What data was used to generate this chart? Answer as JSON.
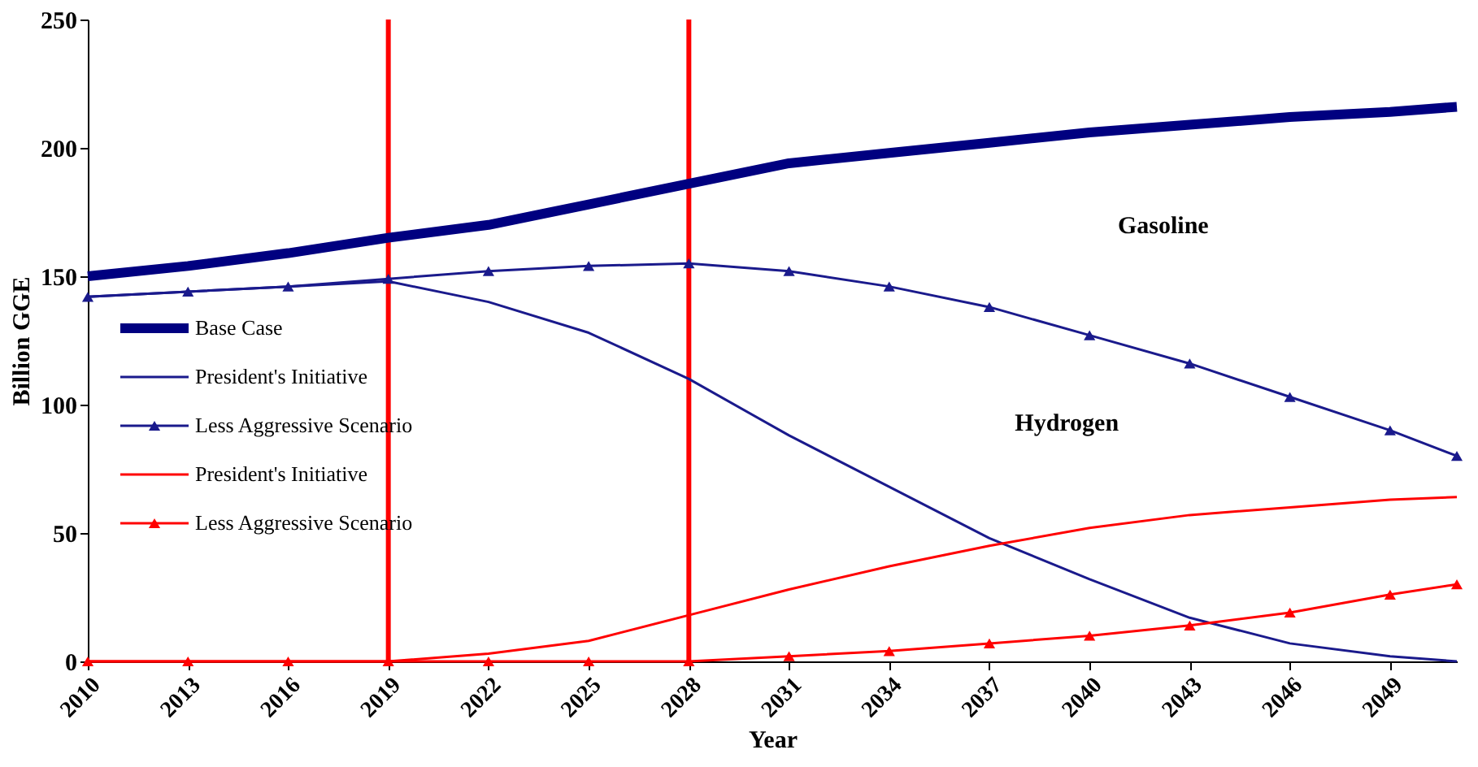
{
  "chart_data": {
    "type": "line",
    "xlabel": "Year",
    "ylabel": "Billion GGE",
    "xlim": [
      2010,
      2051
    ],
    "xticks": [
      2010,
      2013,
      2016,
      2019,
      2022,
      2025,
      2028,
      2031,
      2034,
      2037,
      2040,
      2043,
      2046,
      2049
    ],
    "ylim": [
      0,
      250
    ],
    "yticks": [
      0,
      50,
      100,
      150,
      200,
      250
    ],
    "grid": false,
    "legend": "left",
    "x": [
      2010,
      2013,
      2016,
      2019,
      2022,
      2025,
      2028,
      2031,
      2034,
      2037,
      2040,
      2043,
      2046,
      2049,
      2051
    ],
    "series": [
      {
        "name": "Base Case",
        "color": "#000080",
        "values": [
          150,
          154,
          159,
          165,
          170,
          178,
          186,
          194,
          198,
          202,
          206,
          209,
          212,
          214,
          216
        ],
        "marker": "none"
      },
      {
        "name": "President's Initiative",
        "color": "#1a1a8c",
        "values": [
          142,
          144,
          146,
          148,
          140,
          128,
          110,
          88,
          68,
          48,
          32,
          17,
          7,
          2,
          0
        ],
        "marker": "none"
      },
      {
        "name": "Less Aggressive Scenario",
        "color": "#1a1a8c",
        "values": [
          142,
          144,
          146,
          149,
          152,
          154,
          155,
          152,
          146,
          138,
          127,
          116,
          103,
          90,
          80
        ],
        "marker": "triangle"
      },
      {
        "name": "President's Initiative",
        "color": "#ff0000",
        "values": [
          0,
          0,
          0,
          0,
          3,
          8,
          18,
          28,
          37,
          45,
          52,
          57,
          60,
          63,
          64
        ],
        "marker": "none"
      },
      {
        "name": "Less Aggressive Scenario",
        "color": "#ff0000",
        "values": [
          0,
          0,
          0,
          0,
          0,
          0,
          0,
          2,
          4,
          7,
          10,
          14,
          19,
          26,
          30
        ],
        "marker": "triangle"
      }
    ],
    "ref_lines": [
      {
        "axis": "x",
        "value": 2019,
        "color": "#ff0000"
      },
      {
        "axis": "x",
        "value": 2028,
        "color": "#ff0000"
      }
    ],
    "annotations": [
      "Gasoline",
      "Hydrogen"
    ]
  }
}
